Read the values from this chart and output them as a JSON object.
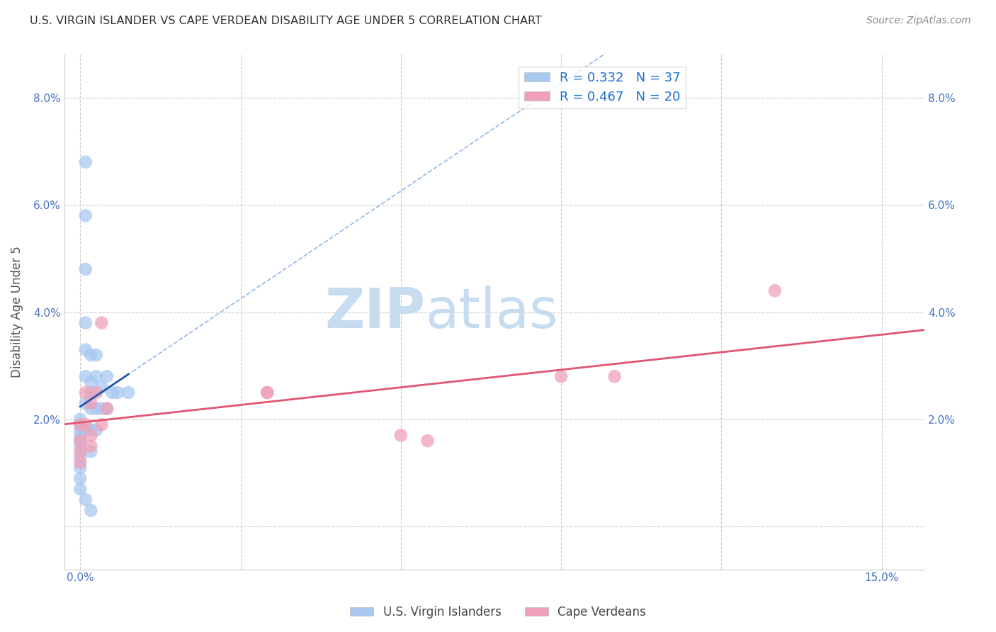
{
  "title": "U.S. VIRGIN ISLANDER VS CAPE VERDEAN DISABILITY AGE UNDER 5 CORRELATION CHART",
  "source": "Source: ZipAtlas.com",
  "ylabel": "Disability Age Under 5",
  "xlabel_ticks": [
    0.0,
    0.03,
    0.06,
    0.09,
    0.12,
    0.15
  ],
  "xlabel_labels": [
    "0.0%",
    "",
    "",
    "",
    "",
    "15.0%"
  ],
  "ylabel_ticks": [
    0.0,
    0.02,
    0.04,
    0.06,
    0.08
  ],
  "ylabel_labels": [
    "",
    "2.0%",
    "4.0%",
    "6.0%",
    "8.0%"
  ],
  "xlim": [
    -0.003,
    0.158
  ],
  "ylim": [
    -0.008,
    0.088
  ],
  "color_blue": "#A8C8F0",
  "color_pink": "#F0A0B8",
  "trendline_blue": "#2255AA",
  "trendline_pink": "#E05575",
  "trendline_blue_dash": "#90B8E8",
  "watermark_zip_color": "#C8DCF0",
  "watermark_atlas_color": "#C8DCF0",
  "grid_color": "#CCCCCC",
  "title_color": "#333333",
  "axis_label_color": "#4472C4",
  "blue_scatter_x": [
    0.001,
    0.001,
    0.001,
    0.001,
    0.001,
    0.001,
    0.001,
    0.001,
    0.002,
    0.002,
    0.002,
    0.002,
    0.002,
    0.002,
    0.003,
    0.003,
    0.003,
    0.003,
    0.004,
    0.004,
    0.005,
    0.005,
    0.006,
    0.007,
    0.0,
    0.0,
    0.0,
    0.0,
    0.0,
    0.0,
    0.0,
    0.0,
    0.0,
    0.0,
    0.009,
    0.001,
    0.002
  ],
  "blue_scatter_y": [
    0.068,
    0.058,
    0.048,
    0.038,
    0.033,
    0.028,
    0.023,
    0.018,
    0.032,
    0.027,
    0.025,
    0.022,
    0.018,
    0.014,
    0.032,
    0.028,
    0.022,
    0.018,
    0.026,
    0.022,
    0.028,
    0.022,
    0.025,
    0.025,
    0.02,
    0.019,
    0.018,
    0.017,
    0.016,
    0.015,
    0.013,
    0.011,
    0.009,
    0.007,
    0.025,
    0.005,
    0.003
  ],
  "pink_scatter_x": [
    0.0,
    0.0,
    0.0,
    0.0,
    0.001,
    0.001,
    0.002,
    0.002,
    0.003,
    0.004,
    0.004,
    0.005,
    0.035,
    0.035,
    0.06,
    0.065,
    0.09,
    0.1,
    0.13,
    0.002
  ],
  "pink_scatter_y": [
    0.019,
    0.016,
    0.014,
    0.012,
    0.025,
    0.019,
    0.023,
    0.017,
    0.025,
    0.038,
    0.019,
    0.022,
    0.025,
    0.025,
    0.017,
    0.016,
    0.028,
    0.028,
    0.044,
    0.015
  ]
}
